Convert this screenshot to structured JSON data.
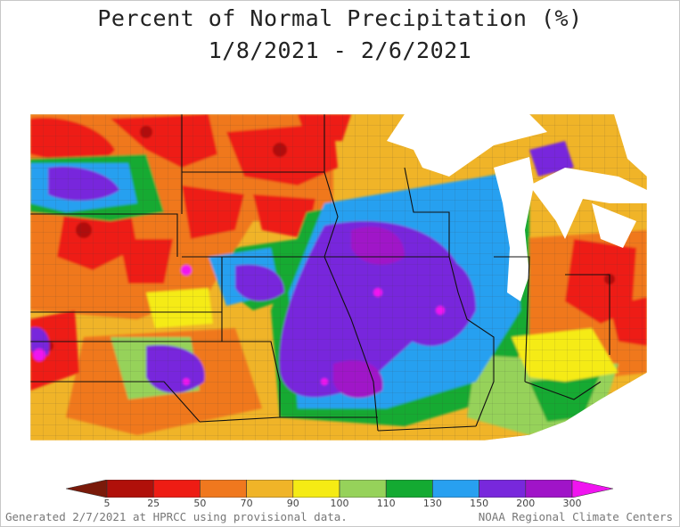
{
  "title": {
    "line1": "Percent of Normal Precipitation (%)",
    "line2": "1/8/2021 - 2/6/2021"
  },
  "legend": {
    "ticks": [
      "5",
      "25",
      "50",
      "70",
      "90",
      "100",
      "110",
      "130",
      "150",
      "200",
      "300"
    ],
    "bins": [
      {
        "range": "<5",
        "color": "#7a1a0a"
      },
      {
        "range": "5-25",
        "color": "#b0100a"
      },
      {
        "range": "25-50",
        "color": "#ee1c14"
      },
      {
        "range": "50-70",
        "color": "#f0781e"
      },
      {
        "range": "70-90",
        "color": "#f0b428"
      },
      {
        "range": "90-100",
        "color": "#f5eb14"
      },
      {
        "range": "100-110",
        "color": "#96d25a"
      },
      {
        "range": "110-130",
        "color": "#14aa32"
      },
      {
        "range": "130-150",
        "color": "#28a0f0"
      },
      {
        "range": "150-200",
        "color": "#7828dc"
      },
      {
        "range": "200-300",
        "color": "#a014c8"
      },
      {
        "range": ">300",
        "color": "#f014f0"
      }
    ]
  },
  "footer": {
    "left": "Generated 2/7/2021 at HPRCC using provisional data.",
    "right": "NOAA Regional Climate Centers"
  },
  "colors": {
    "water": "#ffffff",
    "state_border": "#111111",
    "county_border": "#3a3a3a"
  }
}
